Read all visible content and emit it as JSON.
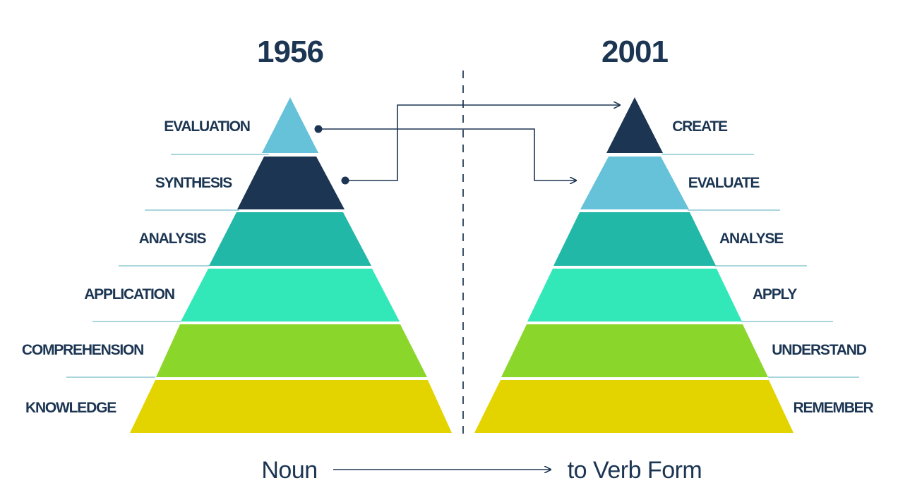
{
  "colors": {
    "text": "#1b3552",
    "divider": "#3b5068",
    "connector": "#1b3552",
    "guide_line": "#a9d6dd",
    "tier_top": "#66c2d9",
    "tier_dark": "#1b3552",
    "tier_teal": "#22b8a7",
    "tier_mint": "#33e8b8",
    "tier_green": "#8bd62a",
    "tier_yellow": "#e3d400"
  },
  "left": {
    "year": "1956",
    "levels": [
      {
        "label": "EVALUATION",
        "color": "#66c2d9"
      },
      {
        "label": "SYNTHESIS",
        "color": "#1b3552"
      },
      {
        "label": "ANALYSIS",
        "color": "#22b8a7"
      },
      {
        "label": "APPLICATION",
        "color": "#33e8b8"
      },
      {
        "label": "COMPREHENSION",
        "color": "#8bd62a"
      },
      {
        "label": "KNOWLEDGE",
        "color": "#e3d400"
      }
    ]
  },
  "right": {
    "year": "2001",
    "levels": [
      {
        "label": "CREATE",
        "color": "#1b3552"
      },
      {
        "label": "EVALUATE",
        "color": "#66c2d9"
      },
      {
        "label": "ANALYSE",
        "color": "#22b8a7"
      },
      {
        "label": "APPLY",
        "color": "#33e8b8"
      },
      {
        "label": "UNDERSTAND",
        "color": "#8bd62a"
      },
      {
        "label": "REMEMBER",
        "color": "#e3d400"
      }
    ]
  },
  "footer": {
    "from": "Noun",
    "to": "to Verb Form"
  }
}
